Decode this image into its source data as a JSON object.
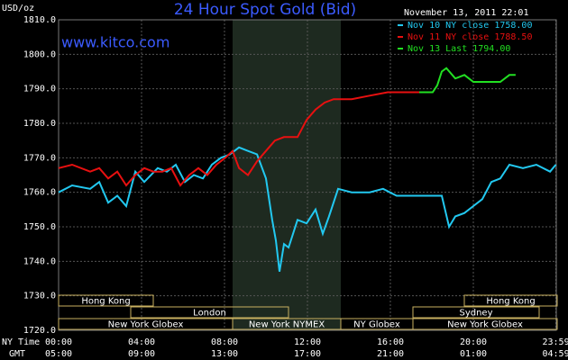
{
  "chart_data": {
    "type": "line",
    "title": "24 Hour Spot Gold (Bid)",
    "subtitle": "November 13, 2011 22:01",
    "watermark": "www.kitco.com",
    "y_label": "USD/oz",
    "x_row_labels": [
      "NY Time",
      "GMT"
    ],
    "xlim": [
      0,
      24
    ],
    "xticks": [
      {
        "value": 0,
        "label": "00:00"
      },
      {
        "value": 4,
        "label": "04:00"
      },
      {
        "value": 8,
        "label": "08:00"
      },
      {
        "value": 12,
        "label": "12:00"
      },
      {
        "value": 16,
        "label": "16:00"
      },
      {
        "value": 20,
        "label": "20:00"
      },
      {
        "value": 23.98,
        "label": "23:59"
      }
    ],
    "xticks_gmt": [
      {
        "value": 0,
        "label": "05:00"
      },
      {
        "value": 4,
        "label": "09:00"
      },
      {
        "value": 8,
        "label": "13:00"
      },
      {
        "value": 12,
        "label": "17:00"
      },
      {
        "value": 16,
        "label": "21:00"
      },
      {
        "value": 20,
        "label": "01:00"
      },
      {
        "value": 23.98,
        "label": "04:59"
      }
    ],
    "ylim": [
      1720,
      1810
    ],
    "yticks": [
      {
        "value": 1720,
        "label": "1720.0"
      },
      {
        "value": 1730,
        "label": "1730.0"
      },
      {
        "value": 1740,
        "label": "1740.0"
      },
      {
        "value": 1750,
        "label": "1750.0"
      },
      {
        "value": 1760,
        "label": "1760.0"
      },
      {
        "value": 1770,
        "label": "1770.0"
      },
      {
        "value": 1780,
        "label": "1780.0"
      },
      {
        "value": 1790,
        "label": "1790.0"
      },
      {
        "value": 1800,
        "label": "1800.0"
      },
      {
        "value": 1810,
        "label": "1810.0"
      }
    ],
    "grid": true,
    "sessions": [
      "Hong Kong",
      "Hong Kong",
      "London",
      "Sydney",
      "New York Globex",
      "New York NYMEX",
      "NY Globex",
      "New York Globex"
    ],
    "series": [
      {
        "name": "Nov 10 NY close 1758.00",
        "color": "#22c8f0",
        "x": [
          0,
          0.65,
          1.52,
          1.96,
          2.39,
          2.83,
          3.26,
          3.7,
          4.13,
          4.78,
          5.22,
          5.65,
          6.09,
          6.52,
          6.96,
          7.39,
          7.83,
          8.26,
          8.7,
          9.13,
          9.57,
          10,
          10.3,
          10.48,
          10.65,
          10.87,
          11.09,
          11.52,
          11.96,
          12.39,
          12.74,
          13.04,
          13.48,
          14.13,
          15,
          15.65,
          16.3,
          17.17,
          18.04,
          18.48,
          18.83,
          19.13,
          19.57,
          20,
          20.43,
          20.87,
          21.3,
          21.74,
          22.39,
          23.04,
          23.7,
          23.98
        ],
        "values": [
          1760,
          1762,
          1761,
          1763,
          1757,
          1759,
          1756,
          1766,
          1763,
          1767,
          1766,
          1768,
          1763,
          1765,
          1764,
          1768,
          1770,
          1771,
          1773,
          1772,
          1771,
          1764,
          1752,
          1746,
          1737,
          1745,
          1744,
          1752,
          1751,
          1755,
          1748,
          1753,
          1761,
          1760,
          1760,
          1761,
          1759,
          1759,
          1759,
          1759,
          1750,
          1753,
          1754,
          1756,
          1758,
          1763,
          1764,
          1768,
          1767,
          1768,
          1766,
          1768
        ]
      },
      {
        "name": "Nov 11 NY close 1788.50",
        "color": "#e81010",
        "x": [
          0,
          0.65,
          1.52,
          1.96,
          2.39,
          2.83,
          3.26,
          3.7,
          4.13,
          4.57,
          5,
          5.43,
          5.87,
          6.3,
          6.74,
          7.17,
          7.61,
          8.04,
          8.39,
          8.7,
          9.13,
          9.57,
          10,
          10.43,
          10.87,
          11.52,
          11.96,
          12.39,
          12.83,
          13.26,
          14.13,
          15,
          15.87,
          16.74,
          17.39
        ],
        "values": [
          1767,
          1768,
          1766,
          1767,
          1764,
          1766,
          1762,
          1765,
          1767,
          1766,
          1766,
          1767,
          1762,
          1765,
          1767,
          1765,
          1768,
          1770,
          1772,
          1767,
          1765,
          1769,
          1772,
          1775,
          1776,
          1776,
          1781,
          1784,
          1786,
          1787,
          1787,
          1788,
          1789,
          1789,
          1789
        ]
      },
      {
        "name": "Nov 13 Last 1794.00",
        "color": "#22e022",
        "x": [
          17.39,
          18.04,
          18.26,
          18.48,
          18.7,
          19.13,
          19.57,
          20,
          20.65,
          21.3,
          21.74,
          22.04
        ],
        "values": [
          1789,
          1789,
          1791,
          1795,
          1796,
          1793,
          1794,
          1792,
          1792,
          1792,
          1794,
          1794
        ]
      }
    ]
  }
}
